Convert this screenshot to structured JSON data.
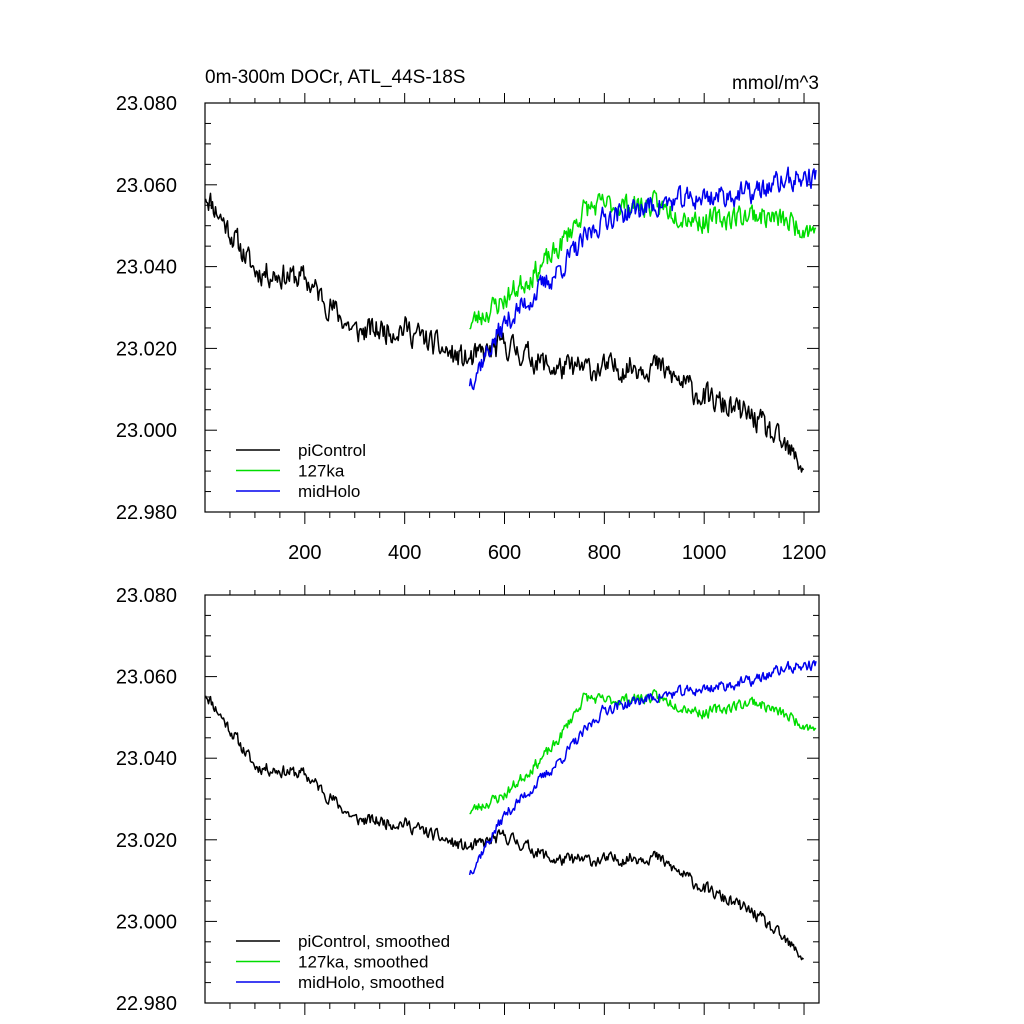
{
  "chart_data": [
    {
      "type": "line",
      "title": "0m-300m DOCr, ATL_44S-18S",
      "units": "mmol/m^3",
      "xlim": [
        0,
        1230
      ],
      "ylim": [
        22.98,
        23.08
      ],
      "x_ticks": [
        200,
        400,
        600,
        800,
        1000,
        1200
      ],
      "x_tick_labels": [
        "200",
        "400",
        "600",
        "800",
        "1000",
        "1200"
      ],
      "y_ticks": [
        22.98,
        23.0,
        23.02,
        23.04,
        23.06,
        23.08
      ],
      "y_tick_labels": [
        "22.980",
        "23.000",
        "23.020",
        "23.040",
        "23.060",
        "23.080"
      ],
      "legend_position": "bottom-left",
      "series": [
        {
          "name": "piControl",
          "color": "#000000",
          "x": [
            1,
            100,
            200,
            300,
            400,
            500,
            530,
            600,
            700,
            800,
            900,
            1000,
            1100,
            1200
          ],
          "values": [
            23.058,
            23.039,
            23.037,
            23.024,
            23.025,
            23.018,
            23.017,
            23.021,
            23.015,
            23.015,
            23.016,
            23.008,
            23.003,
            22.991
          ],
          "noise": 0.005,
          "seed": 11
        },
        {
          "name": "127ka",
          "color": "#00dd00",
          "x": [
            530,
            600,
            700,
            760,
            800,
            900,
            1000,
            1100,
            1225
          ],
          "values": [
            23.026,
            23.032,
            23.043,
            23.054,
            23.055,
            23.055,
            23.051,
            23.053,
            23.049
          ],
          "noise": 0.0045,
          "seed": 23
        },
        {
          "name": "midHolo",
          "color": "#0000ee",
          "x": [
            530,
            600,
            700,
            800,
            900,
            1000,
            1100,
            1160,
            1225
          ],
          "values": [
            23.012,
            23.026,
            23.038,
            23.052,
            23.055,
            23.057,
            23.058,
            23.061,
            23.062
          ],
          "noise": 0.0045,
          "seed": 37
        }
      ]
    },
    {
      "type": "line",
      "title": "",
      "units": "",
      "xlim": [
        0,
        1230
      ],
      "ylim": [
        22.98,
        23.08
      ],
      "x_ticks": [
        200,
        400,
        600,
        800,
        1000,
        1200
      ],
      "x_tick_labels": [],
      "y_ticks": [
        22.98,
        23.0,
        23.02,
        23.04,
        23.06,
        23.08
      ],
      "y_tick_labels": [
        "22.980",
        "23.000",
        "23.020",
        "23.040",
        "23.060",
        "23.080"
      ],
      "legend_position": "bottom-left",
      "series": [
        {
          "name": "piControl, smoothed",
          "color": "#000000",
          "x": [
            1,
            100,
            200,
            300,
            400,
            500,
            530,
            600,
            700,
            800,
            900,
            1000,
            1100,
            1200
          ],
          "values": [
            23.056,
            23.038,
            23.036,
            23.025,
            23.024,
            23.019,
            23.018,
            23.021,
            23.015,
            23.015,
            23.016,
            23.008,
            23.002,
            22.991
          ],
          "noise": 0.0025,
          "seed": 11
        },
        {
          "name": "127ka, smoothed",
          "color": "#00dd00",
          "x": [
            530,
            600,
            700,
            760,
            800,
            900,
            1000,
            1100,
            1225
          ],
          "values": [
            23.027,
            23.031,
            23.043,
            23.055,
            23.054,
            23.055,
            23.051,
            23.054,
            23.047
          ],
          "noise": 0.0022,
          "seed": 23
        },
        {
          "name": "midHolo, smoothed",
          "color": "#0000ee",
          "x": [
            530,
            600,
            700,
            800,
            900,
            1000,
            1100,
            1160,
            1225
          ],
          "values": [
            23.012,
            23.026,
            23.038,
            23.052,
            23.055,
            23.057,
            23.059,
            23.062,
            23.063
          ],
          "noise": 0.0022,
          "seed": 37
        }
      ]
    }
  ]
}
